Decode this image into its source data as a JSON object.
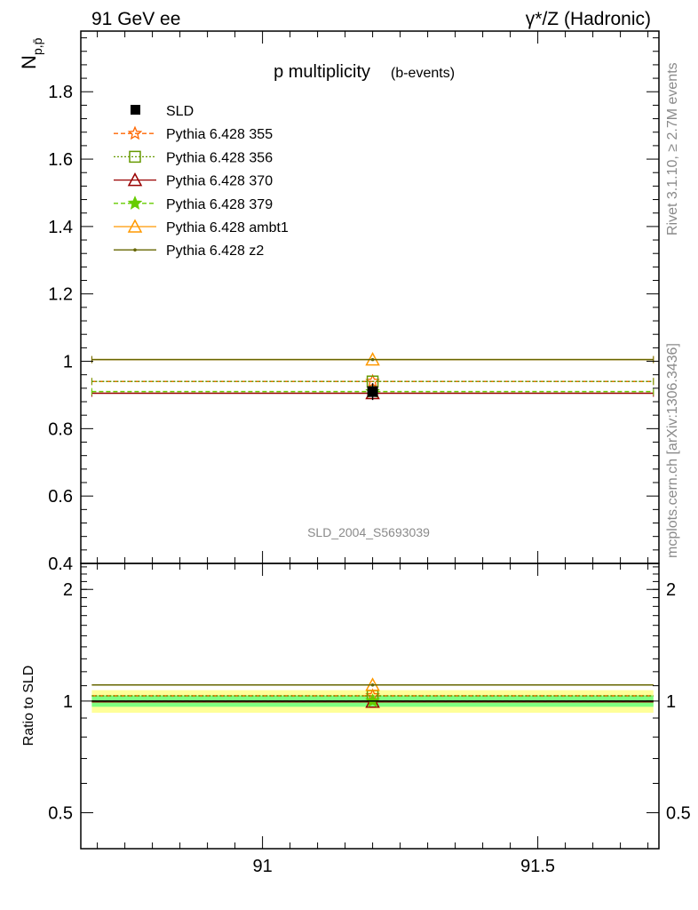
{
  "header": {
    "left": "91 GeV ee",
    "right": "γ*/Z (Hadronic)"
  },
  "side": {
    "rivet": "Rivet 3.1.10, ≥ 2.7M events",
    "mcplots": "mcplots.cern.ch [arXiv:1306.3436]"
  },
  "chart_data": {
    "type": "line",
    "title": "p multiplicity",
    "subtitle": "(b-events)",
    "ylabel": "N_{p,p̄}",
    "ratio_ylabel": "Ratio to SLD",
    "analysis_id": "SLD_2004_S5693039",
    "xlim": [
      90.67,
      91.72
    ],
    "ylim": [
      0.4,
      1.98
    ],
    "ratio_ylim": [
      0.4,
      2.35
    ],
    "ratio_log": true,
    "x_ticks": [
      91,
      91.5
    ],
    "x_tick_labels": [
      "91",
      "91.5"
    ],
    "y_ticks": [
      0.4,
      0.6,
      0.8,
      1,
      1.2,
      1.4,
      1.6,
      1.8
    ],
    "y_tick_labels": [
      "0.4",
      "0.6",
      "0.8",
      "1",
      "1.2",
      "1.4",
      "1.6",
      "1.8"
    ],
    "ratio_ticks": [
      0.5,
      1,
      2
    ],
    "ratio_tick_labels": [
      "0.5",
      "1",
      "2"
    ],
    "x_bin": [
      90.69,
      91.71
    ],
    "x_center": 91.2,
    "data": {
      "name": "SLD",
      "value": 0.91,
      "error": 0.025,
      "ratio_band_inner": [
        0.965,
        1.035
      ],
      "ratio_band_outer": [
        0.93,
        1.07
      ],
      "ratio_band_colors": [
        "#80ff80",
        "#ffff99"
      ],
      "color": "#000000"
    },
    "series": [
      {
        "name": "Pythia 6.428 355",
        "value": 0.94,
        "ratio": 1.033,
        "color": "#ff6600",
        "dash": "5,3",
        "marker": "star-open"
      },
      {
        "name": "Pythia 6.428 356",
        "value": 0.94,
        "ratio": 1.033,
        "color": "#669900",
        "dash": "2,2",
        "marker": "square-open"
      },
      {
        "name": "Pythia 6.428 370",
        "value": 0.905,
        "ratio": 0.995,
        "color": "#990000",
        "dash": "",
        "marker": "triangle-open"
      },
      {
        "name": "Pythia 6.428 379",
        "value": 0.91,
        "ratio": 1.0,
        "color": "#66cc00",
        "dash": "5,3",
        "marker": "star"
      },
      {
        "name": "Pythia 6.428 ambt1",
        "value": 1.005,
        "ratio": 1.105,
        "color": "#ff9900",
        "dash": "",
        "marker": "triangle-open"
      },
      {
        "name": "Pythia 6.428 z2",
        "value": 1.005,
        "ratio": 1.105,
        "color": "#666600",
        "dash": "",
        "marker": "dot"
      }
    ]
  }
}
